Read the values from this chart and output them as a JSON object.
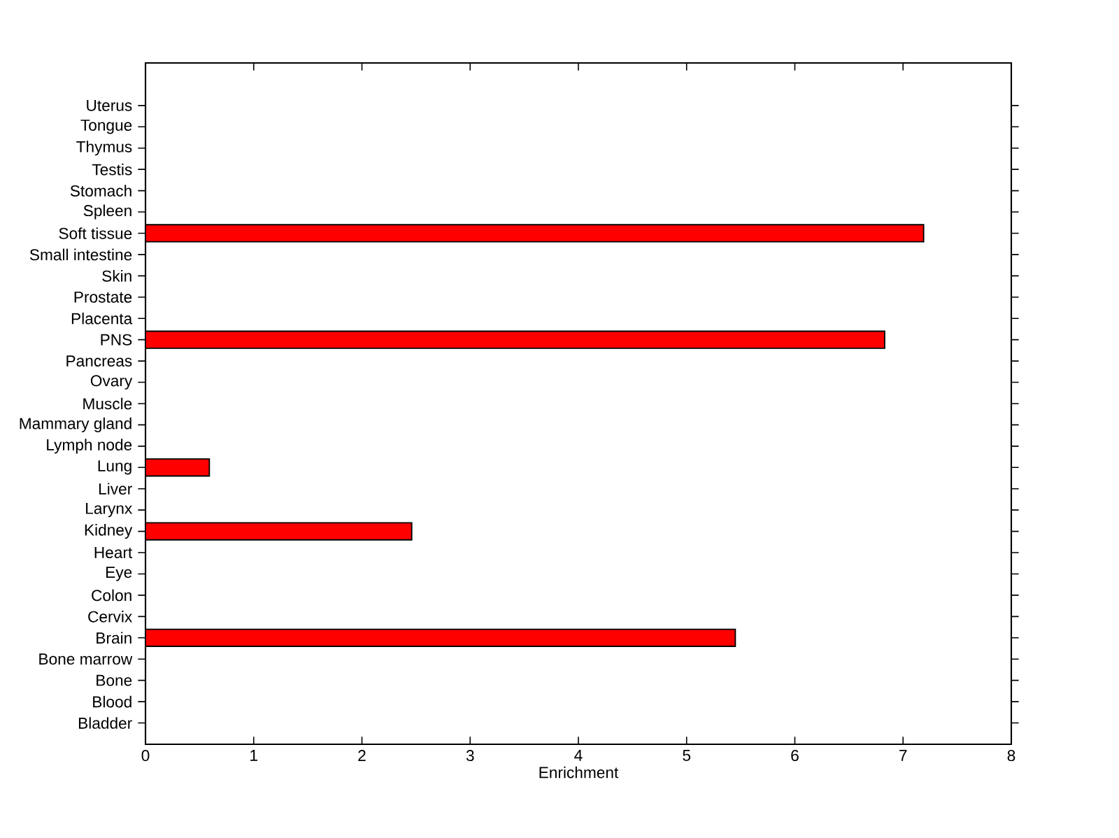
{
  "chart_data": {
    "type": "bar",
    "orientation": "horizontal",
    "xlabel": "Enrichment",
    "categories": [
      "Uterus",
      "Tongue",
      "Thymus",
      "Testis",
      "Stomach",
      "Spleen",
      "Soft tissue",
      "Small intestine",
      "Skin",
      "Prostate",
      "Placenta",
      "PNS",
      "Pancreas",
      "Ovary",
      "Muscle",
      "Mammary gland",
      "Lymph node",
      "Lung",
      "Liver",
      "Larynx",
      "Kidney",
      "Heart",
      "Eye",
      "Colon",
      "Cervix",
      "Brain",
      "Bone marrow",
      "Bone",
      "Blood",
      "Bladder"
    ],
    "values": [
      0,
      0,
      0,
      0,
      0,
      0,
      7.19,
      0,
      0,
      0,
      0,
      6.83,
      0,
      0,
      0,
      0,
      0,
      0.59,
      0,
      0,
      2.46,
      0,
      0,
      0,
      0,
      5.45,
      0,
      0,
      0,
      0
    ],
    "color": "#ff0000",
    "xlim": [
      0,
      8
    ],
    "xticks": [
      0,
      1,
      2,
      3,
      4,
      5,
      6,
      7,
      8
    ],
    "grid": false
  }
}
